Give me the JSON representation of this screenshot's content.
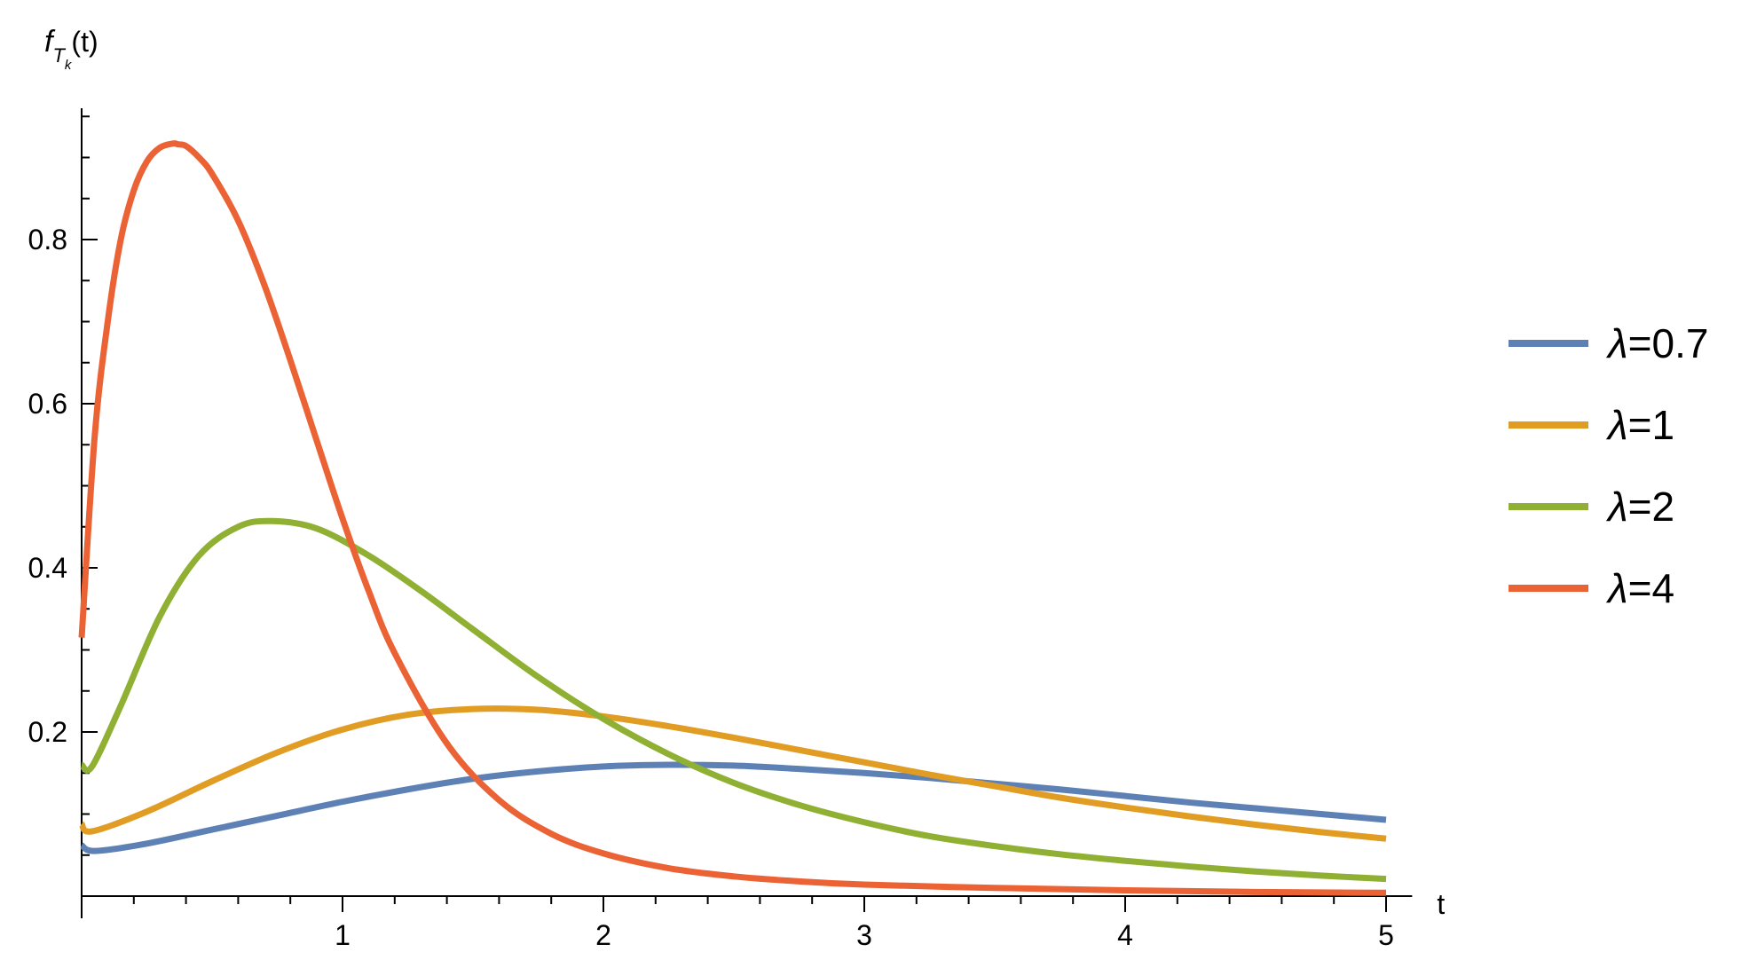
{
  "chart_data": {
    "type": "line",
    "title": "",
    "xlabel": "t",
    "ylabel": "f",
    "ylabel_sub": "T",
    "ylabel_subsub": "k",
    "ylabel_arg": "(t)",
    "xlim": [
      0,
      5.1
    ],
    "ylim": [
      0,
      0.96
    ],
    "xticks": [
      1,
      2,
      3,
      4,
      5
    ],
    "xtick_labels": [
      "1",
      "2",
      "3",
      "4",
      "5"
    ],
    "yticks": [
      0.2,
      0.4,
      0.6,
      0.8
    ],
    "ytick_labels": [
      "0.2",
      "0.4",
      "0.6",
      "0.8"
    ],
    "grid": false,
    "legend_position": "right",
    "series": [
      {
        "name": "λ=0.7",
        "symbol": "λ",
        "label_rest": "=0.7",
        "color": "#5e81b5",
        "x": [
          0,
          0.05,
          0.25,
          0.5,
          0.75,
          1.0,
          1.25,
          1.5,
          1.75,
          2.0,
          2.25,
          2.5,
          2.75,
          3.0,
          3.25,
          3.5,
          3.75,
          4.0,
          4.25,
          4.5,
          4.75,
          5.0
        ],
        "y": [
          0.062,
          0.055,
          0.064,
          0.081,
          0.098,
          0.115,
          0.13,
          0.143,
          0.152,
          0.158,
          0.16,
          0.159,
          0.155,
          0.15,
          0.144,
          0.137,
          0.13,
          0.122,
          0.114,
          0.107,
          0.1,
          0.093
        ]
      },
      {
        "name": "λ=1",
        "symbol": "λ",
        "label_rest": "=1",
        "color": "#e19c24",
        "x": [
          0,
          0.04,
          0.25,
          0.5,
          0.75,
          1.0,
          1.25,
          1.5,
          1.75,
          2.0,
          2.25,
          2.5,
          2.75,
          3.0,
          3.25,
          3.5,
          3.75,
          4.0,
          4.25,
          4.5,
          4.75,
          5.0
        ],
        "y": [
          0.088,
          0.079,
          0.103,
          0.14,
          0.175,
          0.203,
          0.221,
          0.228,
          0.227,
          0.219,
          0.207,
          0.193,
          0.178,
          0.163,
          0.148,
          0.134,
          0.12,
          0.108,
          0.097,
          0.087,
          0.078,
          0.07
        ]
      },
      {
        "name": "λ=2",
        "symbol": "λ",
        "label_rest": "=2",
        "color": "#8fb032",
        "x": [
          0,
          0.04,
          0.15,
          0.3,
          0.45,
          0.6,
          0.73,
          0.9,
          1.1,
          1.3,
          1.5,
          1.75,
          2.0,
          2.25,
          2.5,
          2.75,
          3.0,
          3.25,
          3.5,
          3.75,
          4.0,
          4.25,
          4.5,
          4.75,
          5.0
        ],
        "y": [
          0.16,
          0.158,
          0.232,
          0.341,
          0.415,
          0.45,
          0.457,
          0.448,
          0.415,
          0.372,
          0.325,
          0.267,
          0.216,
          0.173,
          0.138,
          0.111,
          0.09,
          0.073,
          0.061,
          0.051,
          0.043,
          0.036,
          0.03,
          0.025,
          0.021
        ]
      },
      {
        "name": "λ=4",
        "symbol": "λ",
        "label_rest": "=4",
        "color": "#eb6235",
        "x": [
          0,
          0.05,
          0.1,
          0.15,
          0.2,
          0.25,
          0.3,
          0.35,
          0.37,
          0.4,
          0.45,
          0.5,
          0.6,
          0.7,
          0.8,
          0.9,
          1.0,
          1.1,
          1.2,
          1.4,
          1.6,
          1.8,
          2.0,
          2.25,
          2.5,
          2.75,
          3.0,
          3.5,
          4.0,
          4.5,
          5.0
        ],
        "y": [
          0.315,
          0.56,
          0.7,
          0.8,
          0.86,
          0.895,
          0.912,
          0.917,
          0.916,
          0.914,
          0.9,
          0.88,
          0.823,
          0.745,
          0.653,
          0.556,
          0.46,
          0.372,
          0.296,
          0.186,
          0.117,
          0.076,
          0.052,
          0.034,
          0.024,
          0.018,
          0.014,
          0.01,
          0.007,
          0.005,
          0.004
        ]
      }
    ]
  }
}
